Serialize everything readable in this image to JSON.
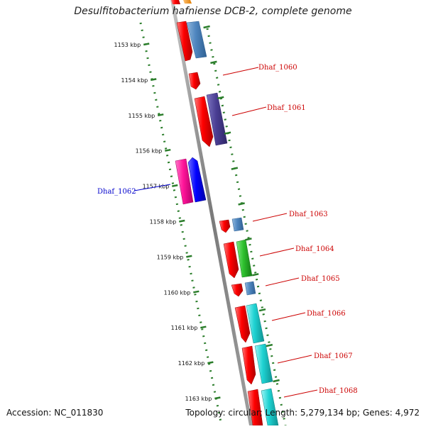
{
  "title": "Desulfitobacterium hafniense DCB-2, complete genome",
  "footer": {
    "accession": "Accession: NC_011830",
    "summary": "Topology: circular; Length: 5,279,134 bp; Genes: 4,972"
  },
  "colors": {
    "backbone": "#8c8c8c",
    "tick": "#2a7d2a",
    "label_red": "#cc0000",
    "label_blue": "#0000cc"
  },
  "ticks": [
    "1153 kbp",
    "1154 kbp",
    "1155 kbp",
    "1156 kbp",
    "1157 kbp",
    "1158 kbp",
    "1159 kbp",
    "1160 kbp",
    "1161 kbp",
    "1162 kbp",
    "1163 kbp"
  ],
  "labels": [
    {
      "text": "Dhaf_1060",
      "color": "#cc0000"
    },
    {
      "text": "Dhaf_1061",
      "color": "#cc0000"
    },
    {
      "text": "Dhaf_1062",
      "color": "#0000cc"
    },
    {
      "text": "Dhaf_1063",
      "color": "#cc0000"
    },
    {
      "text": "Dhaf_1064",
      "color": "#cc0000"
    },
    {
      "text": "Dhaf_1065",
      "color": "#cc0000"
    },
    {
      "text": "Dhaf_1066",
      "color": "#cc0000"
    },
    {
      "text": "Dhaf_1067",
      "color": "#cc0000"
    },
    {
      "text": "Dhaf_1068",
      "color": "#cc0000"
    }
  ]
}
